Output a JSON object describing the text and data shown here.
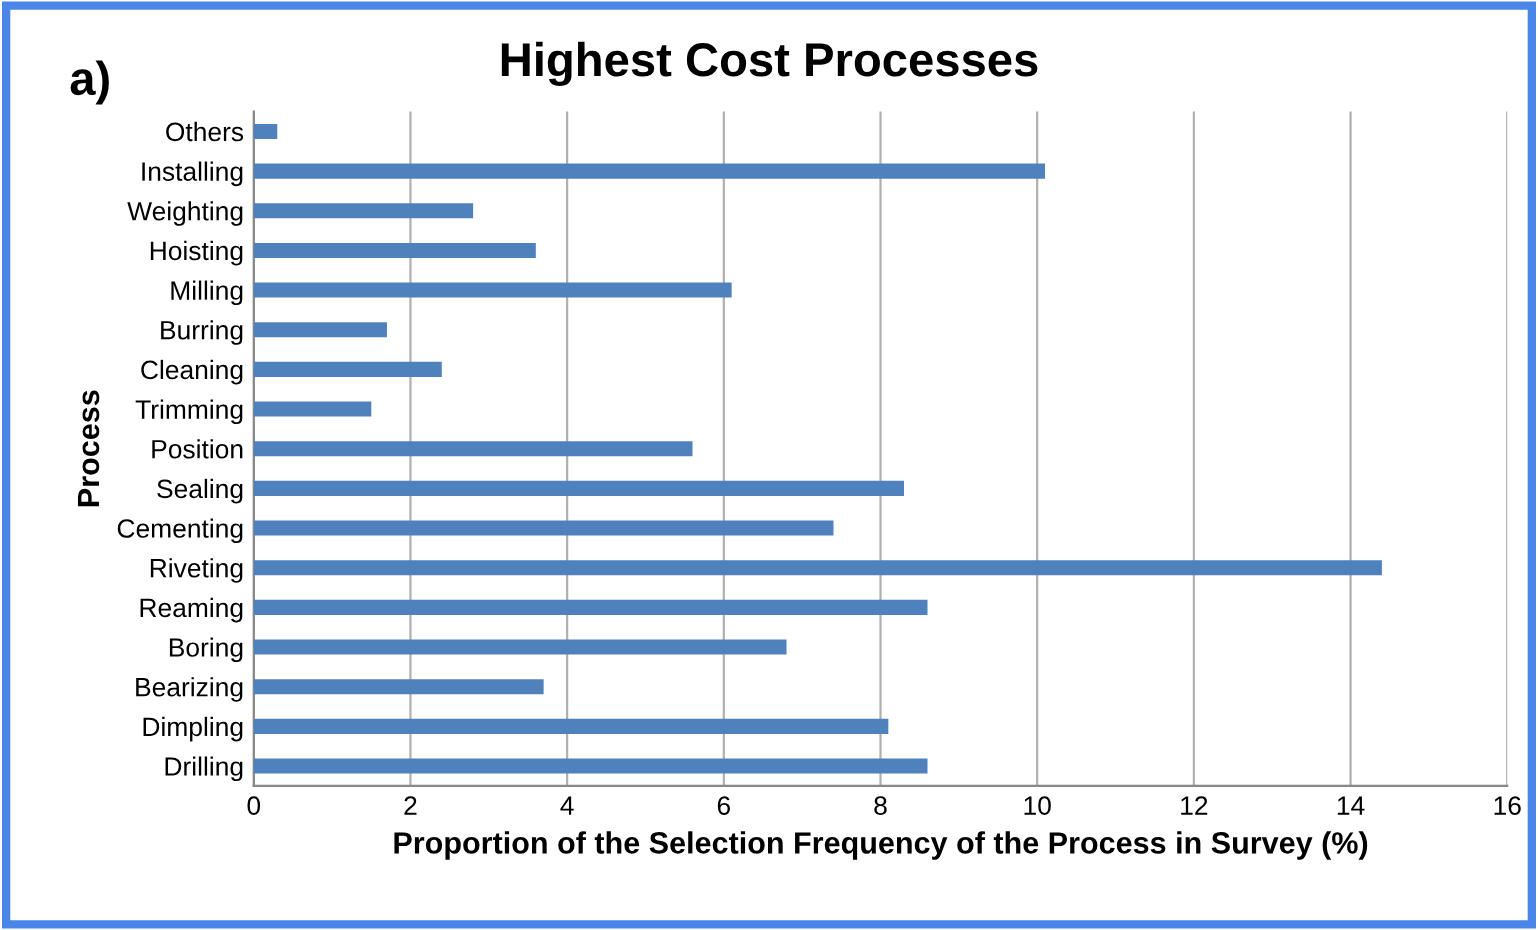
{
  "chart_data": {
    "type": "bar",
    "orientation": "horizontal",
    "title": "Highest Cost Processes",
    "annotations": [
      "a)"
    ],
    "xlabel": "Proportion of the Selection Frequency of the Process in Survey (%)",
    "ylabel": "Process",
    "categories": [
      "Others",
      "Installing",
      "Weighting",
      "Hoisting",
      "Milling",
      "Burring",
      "Cleaning",
      "Trimming",
      "Position",
      "Sealing",
      "Cementing",
      "Riveting",
      "Reaming",
      "Boring",
      "Bearizing",
      "Dimpling",
      "Drilling"
    ],
    "values": [
      0.3,
      10.1,
      2.8,
      3.6,
      6.1,
      1.7,
      2.4,
      1.5,
      5.6,
      8.3,
      7.4,
      14.4,
      8.6,
      6.8,
      3.7,
      8.1,
      8.6
    ],
    "color": "#4f81bd",
    "xlim": [
      0,
      16
    ],
    "xticks": [
      0,
      2,
      4,
      6,
      8,
      10,
      12,
      14,
      16
    ],
    "grid": "x",
    "legend": false
  }
}
